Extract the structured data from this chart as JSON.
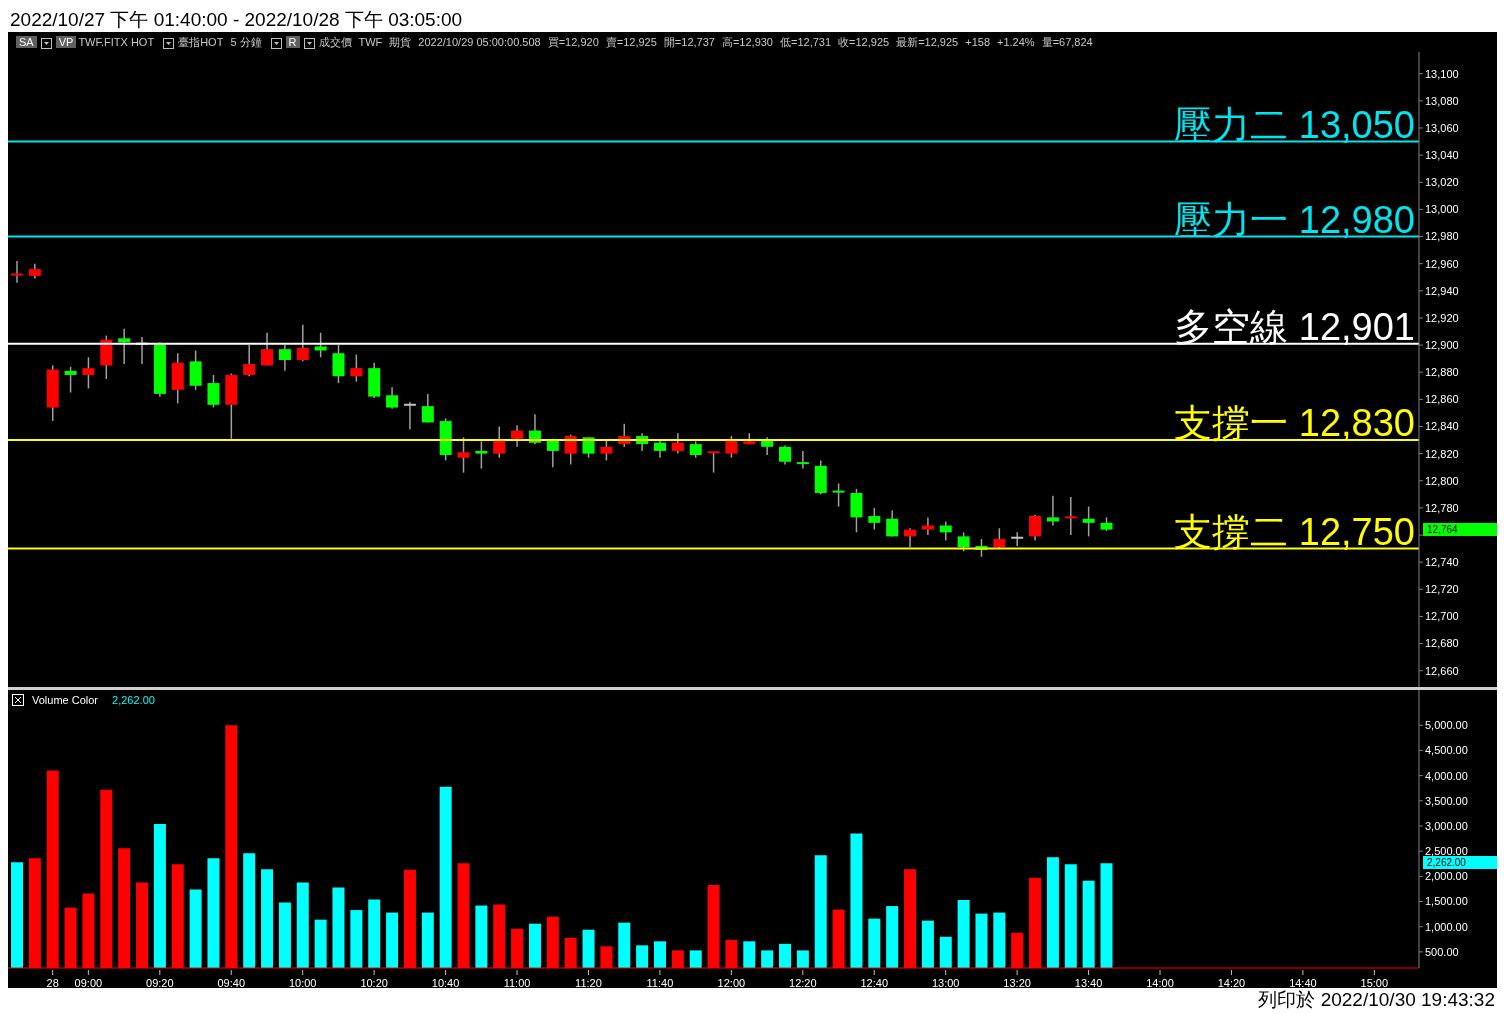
{
  "chart_data": [
    {
      "type": "candlestick",
      "title": "2022/10/27 下午 01:40:00 - 2022/10/28 下午 03:05:00",
      "categories": [
        null,
        null,
        null,
        null,
        null,
        null,
        null,
        null,
        null,
        null,
        null,
        null,
        null,
        null,
        null,
        null,
        null,
        null,
        null,
        null,
        null,
        null,
        null,
        null,
        null,
        null,
        null,
        null,
        null,
        null,
        null,
        null,
        null,
        null,
        null,
        null,
        null,
        null,
        null,
        null,
        null,
        null,
        null,
        null,
        null,
        null,
        null,
        null,
        null,
        null,
        null,
        null,
        null,
        null,
        null,
        null,
        null,
        null,
        null,
        null,
        null,
        null,
        null,
        null,
        null,
        null,
        null,
        null,
        null,
        null,
        null,
        null,
        null,
        null,
        null,
        null,
        null,
        null,
        null
      ],
      "ohlc": [
        [
          12951,
          12962,
          12946,
          12952
        ],
        [
          12951,
          12960,
          12949,
          12956
        ],
        [
          12854,
          12885,
          12844,
          12882
        ],
        [
          12881,
          12884,
          12865,
          12878
        ],
        [
          12878,
          12891,
          12868,
          12883
        ],
        [
          12885,
          12907,
          12875,
          12904
        ],
        [
          12905,
          12912,
          12886,
          12902
        ],
        [
          12901,
          12906,
          12886,
          12901
        ],
        [
          12901,
          12902,
          12862,
          12864
        ],
        [
          12867,
          12894,
          12857,
          12887
        ],
        [
          12888,
          12896,
          12867,
          12870
        ],
        [
          12872,
          12878,
          12854,
          12856
        ],
        [
          12856,
          12879,
          12831,
          12878
        ],
        [
          12878,
          12900,
          12877,
          12886
        ],
        [
          12885,
          12909,
          12885,
          12897
        ],
        [
          12897,
          12900,
          12881,
          12889
        ],
        [
          12889,
          12915,
          12888,
          12898
        ],
        [
          12899,
          12909,
          12891,
          12896
        ],
        [
          12894,
          12900,
          12872,
          12877
        ],
        [
          12877,
          12893,
          12873,
          12883
        ],
        [
          12883,
          12887,
          12861,
          12862
        ],
        [
          12863,
          12869,
          12853,
          12854
        ],
        [
          12856,
          12858,
          12838,
          12856
        ],
        [
          12855,
          12864,
          12843,
          12843
        ],
        [
          12844,
          12846,
          12815,
          12819
        ],
        [
          12817,
          12832,
          12806,
          12821
        ],
        [
          12822,
          12829,
          12809,
          12820
        ],
        [
          12820,
          12840,
          12817,
          12830
        ],
        [
          12831,
          12841,
          12825,
          12837
        ],
        [
          12837,
          12849,
          12827,
          12828
        ],
        [
          12830,
          12831,
          12810,
          12822
        ],
        [
          12820,
          12834,
          12812,
          12833
        ],
        [
          12832,
          12832,
          12817,
          12820
        ],
        [
          12820,
          12830,
          12815,
          12825
        ],
        [
          12827,
          12842,
          12825,
          12833
        ],
        [
          12833,
          12835,
          12822,
          12827
        ],
        [
          12828,
          12830,
          12817,
          12822
        ],
        [
          12822,
          12835,
          12820,
          12828
        ],
        [
          12827,
          12829,
          12817,
          12819
        ],
        [
          12820,
          12821,
          12806,
          12821
        ],
        [
          12820,
          12833,
          12817,
          12830
        ],
        [
          12827,
          12835,
          12827,
          12829
        ],
        [
          12830,
          12832,
          12819,
          12825
        ],
        [
          12825,
          12826,
          12812,
          12814
        ],
        [
          12813,
          12822,
          12809,
          12812
        ],
        [
          12811,
          12815,
          12790,
          12791
        ],
        [
          12792,
          12798,
          12781,
          12791
        ],
        [
          12791,
          12794,
          12762,
          12773
        ],
        [
          12774,
          12780,
          12764,
          12769
        ],
        [
          12772,
          12778,
          12759,
          12759
        ],
        [
          12759,
          12765,
          12751,
          12764
        ],
        [
          12764,
          12773,
          12760,
          12767
        ],
        [
          12767,
          12770,
          12756,
          12762
        ],
        [
          12759,
          12762,
          12748,
          12751
        ],
        [
          12752,
          12757,
          12744,
          12749
        ],
        [
          12751,
          12765,
          12750,
          12757
        ],
        [
          12758,
          12762,
          12752,
          12758
        ],
        [
          12759,
          12775,
          12756,
          12774
        ],
        [
          12773,
          12789,
          12767,
          12770
        ],
        [
          12772,
          12788,
          12760,
          12773
        ],
        [
          12772,
          12781,
          12759,
          12769
        ],
        [
          12769,
          12773,
          12763,
          12764
        ],
        null,
        null,
        null,
        null,
        null,
        null,
        null,
        null,
        null,
        null,
        null,
        null,
        null,
        null,
        null,
        null,
        null
      ],
      "colors": [
        "#ff0000",
        "#ff0000",
        "#ff0000",
        "#00ff00",
        "#ff0000",
        "#ff0000",
        "#00ff00",
        "#c0c0c0",
        "#00ff00",
        "#ff0000",
        "#00ff00",
        "#00ff00",
        "#ff0000",
        "#ff0000",
        "#ff0000",
        "#00ff00",
        "#ff0000",
        "#00ff00",
        "#00ff00",
        "#ff0000",
        "#00ff00",
        "#00ff00",
        "#c0c0c0",
        "#00ff00",
        "#00ff00",
        "#ff0000",
        "#00ff00",
        "#ff0000",
        "#ff0000",
        "#00ff00",
        "#00ff00",
        "#ff0000",
        "#00ff00",
        "#ff0000",
        "#ff0000",
        "#00ff00",
        "#00ff00",
        "#ff0000",
        "#00ff00",
        "#ff0000",
        "#ff0000",
        "#ff0000",
        "#00ff00",
        "#00ff00",
        "#00ff00",
        "#00ff00",
        "#00ff00",
        "#00ff00",
        "#00ff00",
        "#00ff00",
        "#ff0000",
        "#ff0000",
        "#00ff00",
        "#00ff00",
        "#00ff00",
        "#ff0000",
        "#c0c0c0",
        "#ff0000",
        "#00ff00",
        "#ff0000",
        "#00ff00",
        "#00ff00",
        null,
        null,
        null,
        null,
        null,
        null,
        null,
        null,
        null,
        null,
        null,
        null,
        null,
        null,
        null,
        null,
        null
      ],
      "ylim": [
        12648,
        13116
      ],
      "yticks": [
        {
          "value": 12660,
          "label": "12,660"
        },
        {
          "value": 12680,
          "label": "12,680"
        },
        {
          "value": 12700,
          "label": "12,700"
        },
        {
          "value": 12720,
          "label": "12,720"
        },
        {
          "value": 12740,
          "label": "12,740"
        },
        {
          "value": 12760,
          "label": null
        },
        {
          "value": 12780,
          "label": "12,780"
        },
        {
          "value": 12800,
          "label": "12,800"
        },
        {
          "value": 12820,
          "label": "12,820"
        },
        {
          "value": 12840,
          "label": "12,840"
        },
        {
          "value": 12860,
          "label": "12,860"
        },
        {
          "value": 12880,
          "label": "12,880"
        },
        {
          "value": 12900,
          "label": "12,900"
        },
        {
          "value": 12920,
          "label": "12,920"
        },
        {
          "value": 12940,
          "label": "12,940"
        },
        {
          "value": 12960,
          "label": "12,960"
        },
        {
          "value": 12980,
          "label": "12,980"
        },
        {
          "value": 13000,
          "label": "13,000"
        },
        {
          "value": 13020,
          "label": "13,020"
        },
        {
          "value": 13040,
          "label": "13,040"
        },
        {
          "value": 13060,
          "label": "13,060"
        },
        {
          "value": 13080,
          "label": "13,080"
        },
        {
          "value": 13100,
          "label": "13,100"
        }
      ],
      "tick_labels": "y",
      "ref_lines": [
        {
          "axis": "y",
          "value": 13050,
          "label": "壓力二 13,050",
          "color": "#00e5ee"
        },
        {
          "axis": "y",
          "value": 12980,
          "label": "壓力一 12,980",
          "color": "#00e5ee"
        },
        {
          "axis": "y",
          "value": 12901,
          "label": "多空線 12,901",
          "color": "#ffffff"
        },
        {
          "axis": "y",
          "value": 12830,
          "label": "支撐一 12,830",
          "color": "#ffff00"
        },
        {
          "axis": "y",
          "value": 12750,
          "label": "支撐二 12,750",
          "color": "#ffff00"
        }
      ],
      "annotations": [
        "SA",
        "VP",
        "TWF.FITX HOT",
        "臺指HOT",
        "5 分鐘",
        "R",
        "成交價",
        "TWF",
        "期貨",
        "2022/10/29 05:00:00.508",
        "買=12,920",
        "賣=12,925",
        "開=12,737",
        "高=12,930",
        "低=12,731",
        "收=12,925",
        "最新=12,925",
        "+158",
        "+1.24%",
        "量=67,824",
        "12,764"
      ]
    },
    {
      "type": "bar",
      "title": "Volume Color",
      "subtitle": "2,262.00",
      "categories": [
        null,
        null,
        "28",
        null,
        "09:00",
        null,
        null,
        null,
        "09:20",
        null,
        null,
        null,
        "09:40",
        null,
        null,
        null,
        "10:00",
        null,
        null,
        null,
        "10:20",
        null,
        null,
        null,
        "10:40",
        null,
        null,
        null,
        "11:00",
        null,
        null,
        null,
        "11:20",
        null,
        null,
        null,
        "11:40",
        null,
        null,
        null,
        "12:00",
        null,
        null,
        null,
        "12:20",
        null,
        null,
        null,
        "12:40",
        null,
        null,
        null,
        "13:00",
        null,
        null,
        null,
        "13:20",
        null,
        null,
        null,
        "13:40",
        null,
        null,
        null,
        "14:00",
        null,
        null,
        null,
        "14:20",
        null,
        null,
        null,
        "14:40",
        null,
        null,
        null,
        "15:00",
        null,
        null
      ],
      "values": [
        2280,
        2360,
        4100,
        1380,
        1660,
        3720,
        2560,
        1880,
        3040,
        2240,
        1740,
        2360,
        5000,
        2460,
        2140,
        1480,
        1880,
        1140,
        1780,
        1330,
        1540,
        1280,
        2130,
        1280,
        3780,
        2260,
        1420,
        1440,
        960,
        1060,
        1200,
        780,
        940,
        610,
        1080,
        630,
        710,
        530,
        530,
        1830,
        740,
        710,
        530,
        660,
        530,
        2420,
        1340,
        2850,
        1160,
        1410,
        2140,
        1120,
        800,
        1530,
        1260,
        1280,
        880,
        1970,
        2380,
        2240,
        1910,
        2262,
        null,
        null,
        null,
        null,
        null,
        null,
        null,
        null,
        null,
        null,
        null,
        null,
        null,
        null,
        null,
        null,
        null
      ],
      "colors": [
        "#00ffff",
        "#ff0000",
        "#ff0000",
        "#ff0000",
        "#ff0000",
        "#ff0000",
        "#ff0000",
        "#ff0000",
        "#00ffff",
        "#ff0000",
        "#00ffff",
        "#00ffff",
        "#ff0000",
        "#00ffff",
        "#00ffff",
        "#00ffff",
        "#00ffff",
        "#00ffff",
        "#00ffff",
        "#00ffff",
        "#00ffff",
        "#00ffff",
        "#ff0000",
        "#00ffff",
        "#00ffff",
        "#ff0000",
        "#00ffff",
        "#ff0000",
        "#ff0000",
        "#00ffff",
        "#ff0000",
        "#ff0000",
        "#00ffff",
        "#ff0000",
        "#00ffff",
        "#00ffff",
        "#00ffff",
        "#ff0000",
        "#00ffff",
        "#ff0000",
        "#ff0000",
        "#00ffff",
        "#00ffff",
        "#00ffff",
        "#00ffff",
        "#00ffff",
        "#ff0000",
        "#00ffff",
        "#00ffff",
        "#00ffff",
        "#ff0000",
        "#00ffff",
        "#00ffff",
        "#00ffff",
        "#00ffff",
        "#00ffff",
        "#ff0000",
        "#ff0000",
        "#00ffff",
        "#00ffff",
        "#00ffff",
        "#00ffff",
        null,
        null,
        null,
        null,
        null,
        null,
        null,
        null,
        null,
        null,
        null,
        null,
        null,
        null,
        null,
        null,
        null
      ],
      "ylim": [
        180,
        5700
      ],
      "yticks": [
        {
          "value": 500,
          "label": "500.00"
        },
        {
          "value": 1000,
          "label": "1,000.00"
        },
        {
          "value": 1500,
          "label": "1,500.00"
        },
        {
          "value": 2000,
          "label": "2,000.00"
        },
        {
          "value": 2500,
          "label": "2,500.00"
        },
        {
          "value": 3000,
          "label": "3,000.00"
        },
        {
          "value": 3500,
          "label": "3,500.00"
        },
        {
          "value": 4000,
          "label": "4,000.00"
        },
        {
          "value": 4500,
          "label": "4,500.00"
        },
        {
          "value": 5000,
          "label": "5,000.00"
        }
      ],
      "annotations": [
        "列印於 2022/10/30 19:43:32",
        "2,262.00"
      ]
    }
  ]
}
